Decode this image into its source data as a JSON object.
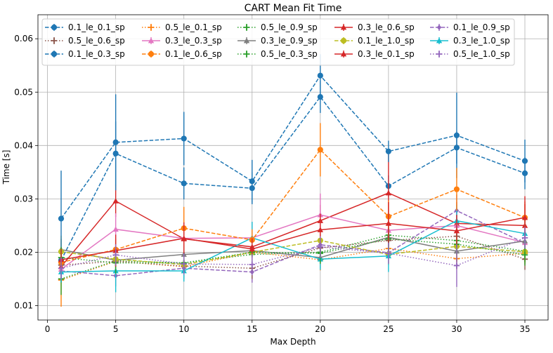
{
  "chart_data": {
    "type": "line",
    "title": "CART Mean Fit Time",
    "xlabel": "Max Depth",
    "ylabel": "Time [s]",
    "xlim": [
      -0.7,
      36.7
    ],
    "ylim": [
      0.0073,
      0.0645
    ],
    "xticks": [
      0,
      5,
      10,
      15,
      20,
      25,
      30,
      35
    ],
    "yticks": [
      0.01,
      0.02,
      0.03,
      0.04,
      0.05,
      0.06
    ],
    "ytick_labels": [
      "0.01",
      "0.02",
      "0.03",
      "0.04",
      "0.05",
      "0.06"
    ],
    "grid": true,
    "legend_position": "top",
    "x": [
      1,
      5,
      10,
      15,
      20,
      25,
      30,
      35
    ],
    "series": [
      {
        "name": "0.1_le_0.1_sp",
        "color": "#1f77b4",
        "marker": "circle",
        "dash": "dashed",
        "values": [
          0.0185,
          0.0385,
          0.0329,
          0.032,
          0.0491,
          0.0324,
          0.0396,
          0.0348
        ],
        "errors": [
          0.002,
          0.006,
          0.003,
          0.003,
          0.003,
          0.002,
          0.003,
          0.003
        ]
      },
      {
        "name": "0.5_le_0.1_sp",
        "color": "#ff7f0e",
        "marker": "plus",
        "dash": "dotted",
        "values": [
          0.0148,
          0.0183,
          0.0173,
          0.02,
          0.0186,
          0.0207,
          0.0188,
          0.0198
        ],
        "errors": [
          0.005,
          0.002,
          0.002,
          0.002,
          0.002,
          0.002,
          0.002,
          0.002
        ]
      },
      {
        "name": "0.5_le_0.9_sp",
        "color": "#2ca02c",
        "marker": "plus",
        "dash": "dotted",
        "values": [
          0.015,
          0.0184,
          0.018,
          0.0196,
          0.02,
          0.0232,
          0.0222,
          0.0202
        ],
        "errors": [
          0.003,
          0.002,
          0.002,
          0.002,
          0.002,
          0.002,
          0.002,
          0.002
        ]
      },
      {
        "name": "0.3_le_0.6_sp",
        "color": "#d62728",
        "marker": "triangle",
        "dash": "solid",
        "values": [
          0.0173,
          0.0296,
          0.0225,
          0.021,
          0.0259,
          0.0311,
          0.0254,
          0.025
        ],
        "errors": [
          0.002,
          0.003,
          0.003,
          0.002,
          0.003,
          0.008,
          0.004,
          0.004
        ]
      },
      {
        "name": "0.1_le_0.9_sp",
        "color": "#9467bd",
        "marker": "diamond",
        "dash": "dashed",
        "values": [
          0.0165,
          0.0156,
          0.017,
          0.0163,
          0.0214,
          0.0199,
          0.0278,
          0.0217
        ],
        "errors": [
          0.002,
          0.002,
          0.002,
          0.002,
          0.002,
          0.002,
          0.003,
          0.003
        ]
      },
      {
        "name": "0.5_le_0.6_sp",
        "color": "#8c564b",
        "marker": "plus",
        "dash": "dotted",
        "values": [
          0.0176,
          0.0183,
          0.0174,
          0.017,
          0.0208,
          0.0222,
          0.023,
          0.0187
        ],
        "errors": [
          0.002,
          0.002,
          0.002,
          0.002,
          0.002,
          0.002,
          0.002,
          0.002
        ]
      },
      {
        "name": "0.3_le_0.3_sp",
        "color": "#e377c2",
        "marker": "triangle",
        "dash": "solid",
        "values": [
          0.0168,
          0.0243,
          0.0226,
          0.0227,
          0.027,
          0.0241,
          0.025,
          0.0218
        ],
        "errors": [
          0.002,
          0.003,
          0.003,
          0.003,
          0.004,
          0.003,
          0.003,
          0.003
        ]
      },
      {
        "name": "0.3_le_0.9_sp",
        "color": "#7f7f7f",
        "marker": "triangle",
        "dash": "solid",
        "values": [
          0.0205,
          0.0185,
          0.0196,
          0.0203,
          0.019,
          0.0228,
          0.0202,
          0.0221
        ],
        "errors": [
          0.002,
          0.002,
          0.002,
          0.002,
          0.002,
          0.002,
          0.002,
          0.002
        ]
      },
      {
        "name": "0.1_le_1.0_sp",
        "color": "#bcbd22",
        "marker": "circle",
        "dash": "dashed",
        "values": [
          0.0201,
          0.0187,
          0.0177,
          0.02,
          0.0222,
          0.0196,
          0.0211,
          0.0201
        ],
        "errors": [
          0.003,
          0.002,
          0.002,
          0.002,
          0.002,
          0.002,
          0.002,
          0.002
        ]
      },
      {
        "name": "0.3_le_1.0_sp",
        "color": "#17becf",
        "marker": "triangle",
        "dash": "solid",
        "values": [
          0.0163,
          0.0165,
          0.0165,
          0.0227,
          0.0187,
          0.0193,
          0.0259,
          0.0235
        ],
        "errors": [
          0.002,
          0.004,
          0.002,
          0.003,
          0.002,
          0.003,
          0.003,
          0.003
        ]
      },
      {
        "name": "0.1_le_0.3_sp",
        "color": "#1f77b4",
        "marker": "circle",
        "dash": "dashed",
        "values": [
          0.0263,
          0.0406,
          0.0413,
          0.0333,
          0.0531,
          0.0389,
          0.0419,
          0.0371
        ],
        "errors": [
          0.009,
          0.009,
          0.005,
          0.004,
          0.004,
          0.002,
          0.008,
          0.004
        ]
      },
      {
        "name": "0.1_le_0.6_sp",
        "color": "#ff7f0e",
        "marker": "circle",
        "dash": "dashed",
        "values": [
          0.0181,
          0.0205,
          0.0245,
          0.0223,
          0.0392,
          0.0267,
          0.0318,
          0.0265
        ],
        "errors": [
          0.002,
          0.002,
          0.004,
          0.002,
          0.005,
          0.003,
          0.004,
          0.003
        ]
      },
      {
        "name": "0.5_le_0.3_sp",
        "color": "#2ca02c",
        "marker": "plus",
        "dash": "dotted",
        "values": [
          0.019,
          0.018,
          0.018,
          0.02,
          0.0198,
          0.0225,
          0.0215,
          0.0195
        ],
        "errors": [
          0.002,
          0.002,
          0.002,
          0.002,
          0.002,
          0.002,
          0.002,
          0.002
        ]
      },
      {
        "name": "0.3_le_0.1_sp",
        "color": "#d62728",
        "marker": "triangle",
        "dash": "solid",
        "values": [
          0.0186,
          0.0203,
          0.0226,
          0.0206,
          0.0242,
          0.0254,
          0.024,
          0.0265
        ],
        "errors": [
          0.002,
          0.003,
          0.003,
          0.002,
          0.003,
          0.004,
          0.003,
          0.004
        ]
      },
      {
        "name": "0.5_le_1.0_sp",
        "color": "#9467bd",
        "marker": "plus",
        "dash": "dotted",
        "values": [
          0.017,
          0.0195,
          0.0178,
          0.0177,
          0.021,
          0.0198,
          0.0175,
          0.0227
        ],
        "errors": [
          0.002,
          0.002,
          0.002,
          0.002,
          0.002,
          0.002,
          0.004,
          0.002
        ]
      }
    ]
  }
}
